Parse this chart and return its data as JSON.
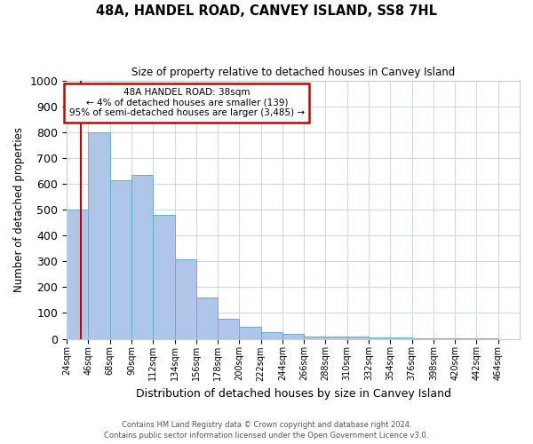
{
  "title": "48A, HANDEL ROAD, CANVEY ISLAND, SS8 7HL",
  "subtitle": "Size of property relative to detached houses in Canvey Island",
  "xlabel": "Distribution of detached houses by size in Canvey Island",
  "ylabel": "Number of detached properties",
  "bar_values": [
    500,
    800,
    615,
    635,
    480,
    308,
    160,
    76,
    45,
    25,
    18,
    10,
    9,
    7,
    5,
    4,
    3,
    2,
    1,
    1,
    0
  ],
  "bin_labels": [
    "24sqm",
    "46sqm",
    "68sqm",
    "90sqm",
    "112sqm",
    "134sqm",
    "156sqm",
    "178sqm",
    "200sqm",
    "222sqm",
    "244sqm",
    "266sqm",
    "288sqm",
    "310sqm",
    "332sqm",
    "354sqm",
    "376sqm",
    "398sqm",
    "420sqm",
    "442sqm",
    "464sqm"
  ],
  "bar_color": "#aec6e8",
  "bar_edge_color": "#6aaad4",
  "ylim": [
    0,
    1000
  ],
  "yticks": [
    0,
    100,
    200,
    300,
    400,
    500,
    600,
    700,
    800,
    900,
    1000
  ],
  "annotation_box_text": "48A HANDEL ROAD: 38sqm\n← 4% of detached houses are smaller (139)\n95% of semi-detached houses are larger (3,485) →",
  "annotation_box_color": "#ffffff",
  "annotation_box_edge_color": "#cc0000",
  "property_size_sqm": 38,
  "footer_line1": "Contains HM Land Registry data © Crown copyright and database right 2024.",
  "footer_line2": "Contains public sector information licensed under the Open Government Licence v3.0.",
  "background_color": "#ffffff",
  "grid_color": "#d0d8e8"
}
